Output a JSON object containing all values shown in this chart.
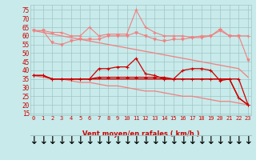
{
  "x": [
    0,
    1,
    2,
    3,
    4,
    5,
    6,
    7,
    8,
    9,
    10,
    11,
    12,
    13,
    14,
    15,
    16,
    17,
    18,
    19,
    20,
    21,
    22,
    23
  ],
  "line1_rafales_max": [
    63,
    63,
    62,
    62,
    60,
    60,
    65,
    60,
    61,
    61,
    61,
    75,
    65,
    62,
    60,
    60,
    60,
    59,
    60,
    60,
    64,
    60,
    60,
    60
  ],
  "line2_rafales_mean": [
    63,
    63,
    56,
    55,
    57,
    58,
    58,
    58,
    60,
    60,
    60,
    62,
    60,
    58,
    57,
    58,
    58,
    59,
    59,
    60,
    63,
    60,
    60,
    46
  ],
  "line3_linear_top": [
    63,
    62,
    61,
    60,
    59,
    58,
    57,
    56,
    55,
    54,
    53,
    52,
    51,
    50,
    49,
    48,
    47,
    46,
    45,
    44,
    43,
    42,
    41,
    36
  ],
  "line4_linear_bot": [
    37,
    36,
    35,
    35,
    34,
    33,
    33,
    32,
    31,
    31,
    30,
    29,
    28,
    28,
    27,
    26,
    25,
    25,
    24,
    23,
    22,
    22,
    21,
    20
  ],
  "line5_mean_wind": [
    37,
    37,
    35,
    35,
    35,
    35,
    35,
    41,
    41,
    42,
    42,
    47,
    38,
    37,
    35,
    35,
    40,
    41,
    41,
    40,
    34,
    35,
    35,
    20
  ],
  "line6_wind_low": [
    37,
    37,
    35,
    35,
    35,
    35,
    35,
    36,
    36,
    36,
    36,
    36,
    36,
    36,
    36,
    35,
    35,
    35,
    35,
    35,
    35,
    35,
    24,
    20
  ],
  "line7_wind_flat": [
    37,
    37,
    35,
    35,
    35,
    35,
    35,
    35,
    35,
    35,
    35,
    35,
    35,
    35,
    35,
    35,
    35,
    35,
    35,
    35,
    35,
    35,
    24,
    20
  ],
  "bg_color": "#c8eaea",
  "grid_color": "#a0c4c4",
  "color_light": "#f08080",
  "color_dark": "#cc0000",
  "xlabel": "Vent moyen/en rafales ( km/h )",
  "xlabel_color": "#cc0000",
  "yticks": [
    15,
    20,
    25,
    30,
    35,
    40,
    45,
    50,
    55,
    60,
    65,
    70,
    75
  ],
  "xticks": [
    0,
    1,
    2,
    3,
    4,
    5,
    6,
    7,
    8,
    9,
    10,
    11,
    12,
    13,
    14,
    15,
    16,
    17,
    18,
    19,
    20,
    21,
    22,
    23
  ],
  "ylim": [
    14,
    78
  ],
  "xlim": [
    -0.3,
    23.3
  ]
}
